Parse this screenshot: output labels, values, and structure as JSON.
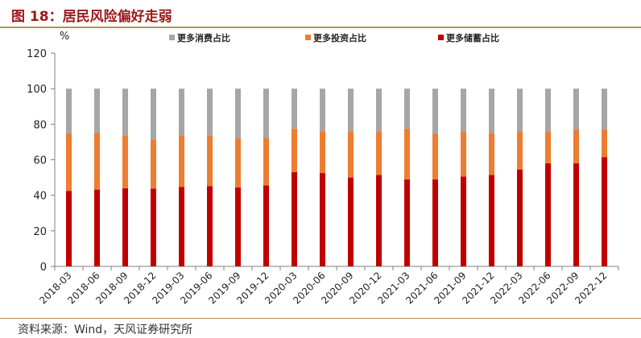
{
  "header": {
    "title": "图 18：居民风险偏好走弱"
  },
  "footer": {
    "source": "资料来源：Wind，天风证券研究所"
  },
  "chart_data": {
    "type": "bar",
    "stacked": true,
    "ylabel": "%",
    "ylim": [
      0,
      120
    ],
    "yticks": [
      0,
      20,
      40,
      60,
      80,
      100,
      120
    ],
    "grid": false,
    "legend": "top",
    "categories": [
      "2018-03",
      "2018-06",
      "2018-09",
      "2018-12",
      "2019-03",
      "2019-06",
      "2019-09",
      "2019-12",
      "2020-03",
      "2020-06",
      "2020-09",
      "2020-12",
      "2021-03",
      "2021-06",
      "2021-09",
      "2021-12",
      "2022-03",
      "2022-06",
      "2022-09",
      "2022-12"
    ],
    "series": [
      {
        "name": "更多储蓄占比",
        "color": "#c00000",
        "values": [
          42.5,
          43.2,
          44.0,
          43.8,
          44.6,
          45.2,
          44.5,
          45.5,
          53.0,
          52.5,
          50.0,
          51.5,
          49.0,
          49.0,
          50.5,
          51.5,
          54.5,
          58.0,
          58.0,
          61.5
        ]
      },
      {
        "name": "更多投资占比",
        "color": "#ed7d31",
        "values": [
          32.5,
          32.0,
          29.5,
          27.5,
          29.0,
          28.5,
          27.5,
          26.5,
          24.5,
          23.5,
          26.0,
          24.5,
          28.5,
          25.5,
          25.5,
          23.5,
          21.5,
          18.0,
          19.0,
          15.5
        ]
      },
      {
        "name": "更多消费占比",
        "color": "#a6a6a6",
        "values": [
          25.0,
          24.8,
          26.5,
          28.7,
          26.4,
          26.3,
          28.0,
          28.0,
          22.5,
          24.0,
          24.0,
          24.0,
          22.5,
          25.5,
          24.0,
          25.0,
          24.0,
          24.0,
          23.0,
          23.0
        ]
      }
    ],
    "legend_order": [
      "更多消费占比",
      "更多投资占比",
      "更多储蓄占比"
    ]
  }
}
